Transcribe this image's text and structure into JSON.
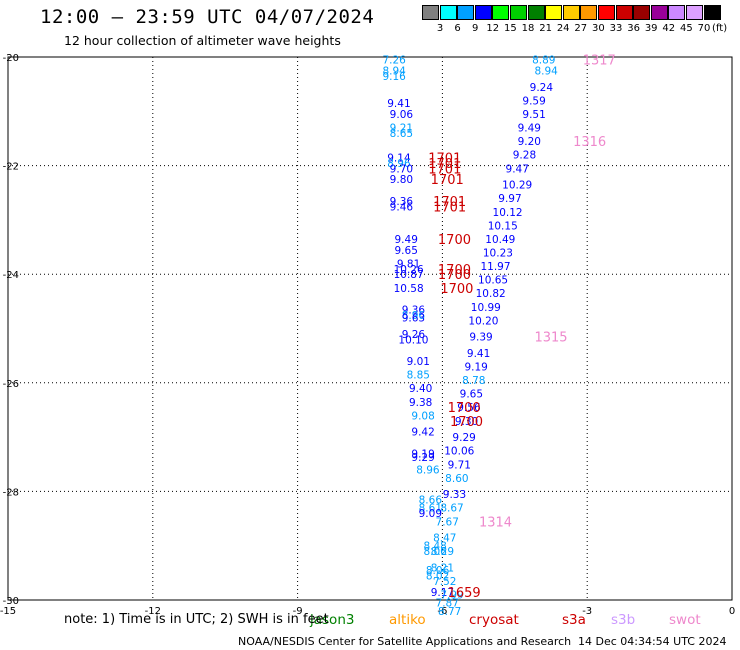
{
  "header": {
    "title": "12:00 — 23:59 UTC 04/07/2024",
    "subtitle": "12 hour collection of altimeter wave heights"
  },
  "color_scale": {
    "labels": [
      "3",
      "6",
      "9",
      "12",
      "15",
      "18",
      "21",
      "24",
      "27",
      "30",
      "33",
      "36",
      "39",
      "42",
      "45",
      "70"
    ],
    "colors": [
      "#808080",
      "#00ffff",
      "#00a0ff",
      "#0000ff",
      "#00ff00",
      "#00d000",
      "#008000",
      "#ffff00",
      "#ffcc00",
      "#ff9900",
      "#ff0000",
      "#cc0000",
      "#990000",
      "#990099",
      "#cc88ff",
      "#dda0ff",
      "#000000"
    ],
    "units": "(ft)"
  },
  "chart_data": {
    "type": "scatter",
    "xlim": [
      -15,
      0
    ],
    "ylim": [
      -30,
      -20
    ],
    "x_ticks": [
      "-15",
      "-12",
      "-9",
      "-6",
      "-3",
      "0"
    ],
    "y_ticks": [
      "-20",
      "-22",
      "-24",
      "-26",
      "-28",
      "-30"
    ],
    "grid": true,
    "swh_points": [
      {
        "lon": -7.0,
        "lat": -20.05,
        "v": "7.26",
        "c": "#00a0ff"
      },
      {
        "lon": -7.0,
        "lat": -20.25,
        "v": "8.94",
        "c": "#00a0ff"
      },
      {
        "lon": -7.0,
        "lat": -20.35,
        "v": "9.16",
        "c": "#00a0ff"
      },
      {
        "lon": -6.9,
        "lat": -20.85,
        "v": "9.41",
        "c": "#0000ff"
      },
      {
        "lon": -6.85,
        "lat": -21.05,
        "v": "9.06",
        "c": "#0000ff"
      },
      {
        "lon": -6.85,
        "lat": -21.3,
        "v": "9.21",
        "c": "#00a0ff"
      },
      {
        "lon": -6.85,
        "lat": -21.4,
        "v": "8.65",
        "c": "#00a0ff"
      },
      {
        "lon": -6.9,
        "lat": -21.85,
        "v": "9.14",
        "c": "#0000ff"
      },
      {
        "lon": -6.9,
        "lat": -21.95,
        "v": "8.96",
        "c": "#00a0ff"
      },
      {
        "lon": -6.85,
        "lat": -22.05,
        "v": "9.70",
        "c": "#0000ff"
      },
      {
        "lon": -6.85,
        "lat": -22.25,
        "v": "9.80",
        "c": "#0000ff"
      },
      {
        "lon": -6.85,
        "lat": -22.65,
        "v": "9.36",
        "c": "#0000ff"
      },
      {
        "lon": -6.85,
        "lat": -22.75,
        "v": "9.46",
        "c": "#0000ff"
      },
      {
        "lon": -6.75,
        "lat": -23.35,
        "v": "9.49",
        "c": "#0000ff"
      },
      {
        "lon": -6.75,
        "lat": -23.55,
        "v": "9.65",
        "c": "#0000ff"
      },
      {
        "lon": -6.7,
        "lat": -23.8,
        "v": "9.81",
        "c": "#0000ff"
      },
      {
        "lon": -6.7,
        "lat": -23.9,
        "v": "10.26",
        "c": "#0000ff"
      },
      {
        "lon": -6.7,
        "lat": -24.0,
        "v": "10.87",
        "c": "#0000ff"
      },
      {
        "lon": -6.7,
        "lat": -24.25,
        "v": "10.58",
        "c": "#0000ff"
      },
      {
        "lon": -6.6,
        "lat": -24.65,
        "v": "9.36",
        "c": "#0000ff"
      },
      {
        "lon": -6.6,
        "lat": -24.75,
        "v": "8.96",
        "c": "#00a0ff"
      },
      {
        "lon": -6.6,
        "lat": -24.8,
        "v": "9.63",
        "c": "#0000ff"
      },
      {
        "lon": -6.6,
        "lat": -25.1,
        "v": "9.26",
        "c": "#0000ff"
      },
      {
        "lon": -6.6,
        "lat": -25.2,
        "v": "10.10",
        "c": "#0000ff"
      },
      {
        "lon": -6.5,
        "lat": -25.6,
        "v": "9.01",
        "c": "#0000ff"
      },
      {
        "lon": -6.5,
        "lat": -25.85,
        "v": "8.85",
        "c": "#00a0ff"
      },
      {
        "lon": -6.45,
        "lat": -26.1,
        "v": "9.40",
        "c": "#0000ff"
      },
      {
        "lon": -6.45,
        "lat": -26.35,
        "v": "9.38",
        "c": "#0000ff"
      },
      {
        "lon": -6.4,
        "lat": -26.6,
        "v": "9.08",
        "c": "#00a0ff"
      },
      {
        "lon": -6.4,
        "lat": -26.9,
        "v": "9.42",
        "c": "#0000ff"
      },
      {
        "lon": -6.4,
        "lat": -27.3,
        "v": "9.19",
        "c": "#0000ff"
      },
      {
        "lon": -6.4,
        "lat": -27.37,
        "v": "9.29",
        "c": "#0000ff"
      },
      {
        "lon": -6.3,
        "lat": -27.6,
        "v": "8.96",
        "c": "#00a0ff"
      },
      {
        "lon": -6.25,
        "lat": -28.15,
        "v": "8.66",
        "c": "#00a0ff"
      },
      {
        "lon": -6.25,
        "lat": -28.3,
        "v": "8.61",
        "c": "#00a0ff"
      },
      {
        "lon": -6.25,
        "lat": -28.4,
        "v": "9.09",
        "c": "#0000ff"
      },
      {
        "lon": -6.15,
        "lat": -29.0,
        "v": "8.48",
        "c": "#00a0ff"
      },
      {
        "lon": -6.15,
        "lat": -29.1,
        "v": "8.06",
        "c": "#00a0ff"
      },
      {
        "lon": -6.1,
        "lat": -29.45,
        "v": "8.06",
        "c": "#00a0ff"
      },
      {
        "lon": -6.1,
        "lat": -29.55,
        "v": "8.02",
        "c": "#00a0ff"
      },
      {
        "lon": -5.95,
        "lat": -29.65,
        "v": "7.52",
        "c": "#00a0ff"
      },
      {
        "lon": -6.0,
        "lat": -29.85,
        "v": "9.17",
        "c": "#0000ff"
      },
      {
        "lon": -5.9,
        "lat": -30.05,
        "v": "7.87",
        "c": "#00a0ff"
      },
      {
        "lon": -5.8,
        "lat": -29.9,
        "v": "7.99",
        "c": "#00a0ff"
      },
      {
        "lon": -5.85,
        "lat": -30.2,
        "v": "8.77",
        "c": "#00a0ff"
      },
      {
        "lon": -3.9,
        "lat": -20.05,
        "v": "8.89",
        "c": "#00a0ff"
      },
      {
        "lon": -3.85,
        "lat": -20.25,
        "v": "8.94",
        "c": "#00a0ff"
      },
      {
        "lon": -3.95,
        "lat": -20.55,
        "v": "9.24",
        "c": "#0000ff"
      },
      {
        "lon": -4.1,
        "lat": -20.8,
        "v": "9.59",
        "c": "#0000ff"
      },
      {
        "lon": -4.1,
        "lat": -21.05,
        "v": "9.51",
        "c": "#0000ff"
      },
      {
        "lon": -4.2,
        "lat": -21.3,
        "v": "9.49",
        "c": "#0000ff"
      },
      {
        "lon": -4.2,
        "lat": -21.55,
        "v": "9.20",
        "c": "#0000ff"
      },
      {
        "lon": -4.3,
        "lat": -21.8,
        "v": "9.28",
        "c": "#0000ff"
      },
      {
        "lon": -4.45,
        "lat": -22.05,
        "v": "9.47",
        "c": "#0000ff"
      },
      {
        "lon": -4.45,
        "lat": -22.35,
        "v": "10.29",
        "c": "#0000ff"
      },
      {
        "lon": -4.6,
        "lat": -22.6,
        "v": "9.97",
        "c": "#0000ff"
      },
      {
        "lon": -4.65,
        "lat": -22.85,
        "v": "10.12",
        "c": "#0000ff"
      },
      {
        "lon": -4.75,
        "lat": -23.1,
        "v": "10.15",
        "c": "#0000ff"
      },
      {
        "lon": -4.8,
        "lat": -23.35,
        "v": "10.49",
        "c": "#0000ff"
      },
      {
        "lon": -4.85,
        "lat": -23.6,
        "v": "10.23",
        "c": "#0000ff"
      },
      {
        "lon": -4.9,
        "lat": -23.85,
        "v": "11.97",
        "c": "#0000ff"
      },
      {
        "lon": -4.95,
        "lat": -24.1,
        "v": "10.65",
        "c": "#0000ff"
      },
      {
        "lon": -5.0,
        "lat": -24.35,
        "v": "10.82",
        "c": "#0000ff"
      },
      {
        "lon": -5.1,
        "lat": -24.6,
        "v": "10.99",
        "c": "#0000ff"
      },
      {
        "lon": -5.15,
        "lat": -24.85,
        "v": "10.20",
        "c": "#0000ff"
      },
      {
        "lon": -5.2,
        "lat": -25.15,
        "v": "9.39",
        "c": "#0000ff"
      },
      {
        "lon": -5.25,
        "lat": -25.45,
        "v": "9.41",
        "c": "#0000ff"
      },
      {
        "lon": -5.3,
        "lat": -25.7,
        "v": "9.19",
        "c": "#0000ff"
      },
      {
        "lon": -5.35,
        "lat": -25.95,
        "v": "8.78",
        "c": "#00a0ff"
      },
      {
        "lon": -5.4,
        "lat": -26.2,
        "v": "9.65",
        "c": "#0000ff"
      },
      {
        "lon": -5.45,
        "lat": -26.45,
        "v": "9.56",
        "c": "#0000ff"
      },
      {
        "lon": -5.5,
        "lat": -26.7,
        "v": "9.30",
        "c": "#0000ff"
      },
      {
        "lon": -5.55,
        "lat": -27.0,
        "v": "9.29",
        "c": "#0000ff"
      },
      {
        "lon": -5.65,
        "lat": -27.25,
        "v": "10.06",
        "c": "#0000ff"
      },
      {
        "lon": -5.65,
        "lat": -27.5,
        "v": "9.71",
        "c": "#0000ff"
      },
      {
        "lon": -5.7,
        "lat": -27.75,
        "v": "8.60",
        "c": "#00a0ff"
      },
      {
        "lon": -5.75,
        "lat": -28.05,
        "v": "9.33",
        "c": "#0000ff"
      },
      {
        "lon": -5.8,
        "lat": -28.3,
        "v": "8.67",
        "c": "#00a0ff"
      },
      {
        "lon": -5.9,
        "lat": -28.55,
        "v": "7.67",
        "c": "#00a0ff"
      },
      {
        "lon": -5.95,
        "lat": -28.85,
        "v": "8.47",
        "c": "#00a0ff"
      },
      {
        "lon": -6.0,
        "lat": -29.1,
        "v": "8.29",
        "c": "#00a0ff"
      },
      {
        "lon": -6.0,
        "lat": -29.4,
        "v": "8.21",
        "c": "#00a0ff"
      }
    ],
    "pass_labels": [
      {
        "lon": -2.75,
        "lat": -20.05,
        "v": "1317",
        "c": "#ee88cc"
      },
      {
        "lon": -2.95,
        "lat": -21.55,
        "v": "1316",
        "c": "#ee88cc"
      },
      {
        "lon": -5.95,
        "lat": -21.85,
        "v": "1701",
        "c": "#cc0000"
      },
      {
        "lon": -5.95,
        "lat": -21.95,
        "v": "1701",
        "c": "#cc0000"
      },
      {
        "lon": -5.95,
        "lat": -22.05,
        "v": "1701",
        "c": "#cc0000"
      },
      {
        "lon": -5.9,
        "lat": -22.25,
        "v": "1701",
        "c": "#cc0000"
      },
      {
        "lon": -5.85,
        "lat": -22.65,
        "v": "1701",
        "c": "#cc0000"
      },
      {
        "lon": -5.85,
        "lat": -22.75,
        "v": "1701",
        "c": "#cc0000"
      },
      {
        "lon": -5.75,
        "lat": -23.35,
        "v": "1700",
        "c": "#cc0000"
      },
      {
        "lon": -5.75,
        "lat": -23.9,
        "v": "1700",
        "c": "#cc0000"
      },
      {
        "lon": -5.75,
        "lat": -24.0,
        "v": "1700",
        "c": "#cc0000"
      },
      {
        "lon": -5.7,
        "lat": -24.25,
        "v": "1700",
        "c": "#cc0000"
      },
      {
        "lon": -3.75,
        "lat": -25.15,
        "v": "1315",
        "c": "#ee88cc"
      },
      {
        "lon": -5.55,
        "lat": -26.45,
        "v": "1700",
        "c": "#cc0000"
      },
      {
        "lon": -5.5,
        "lat": -26.7,
        "v": "1700",
        "c": "#cc0000"
      },
      {
        "lon": -4.9,
        "lat": -28.55,
        "v": "1314",
        "c": "#ee88cc"
      },
      {
        "lon": -5.55,
        "lat": -29.85,
        "v": "1659",
        "c": "#cc0000"
      }
    ]
  },
  "note": "note:  1) Time is in UTC;  2) SWH is in feet",
  "satellites": [
    {
      "name": "jason3",
      "color": "#008000"
    },
    {
      "name": "altiko",
      "color": "#ff9900"
    },
    {
      "name": "cryosat",
      "color": "#cc0000"
    },
    {
      "name": "s3a",
      "color": "#cc0000"
    },
    {
      "name": "s3b",
      "color": "#cc99ff"
    },
    {
      "name": "swot",
      "color": "#ee88cc"
    }
  ],
  "footer": "NOAA/NESDIS Center for Satellite Applications and Research",
  "timestamp": "14 Dec 04:34:54 UTC 2024"
}
